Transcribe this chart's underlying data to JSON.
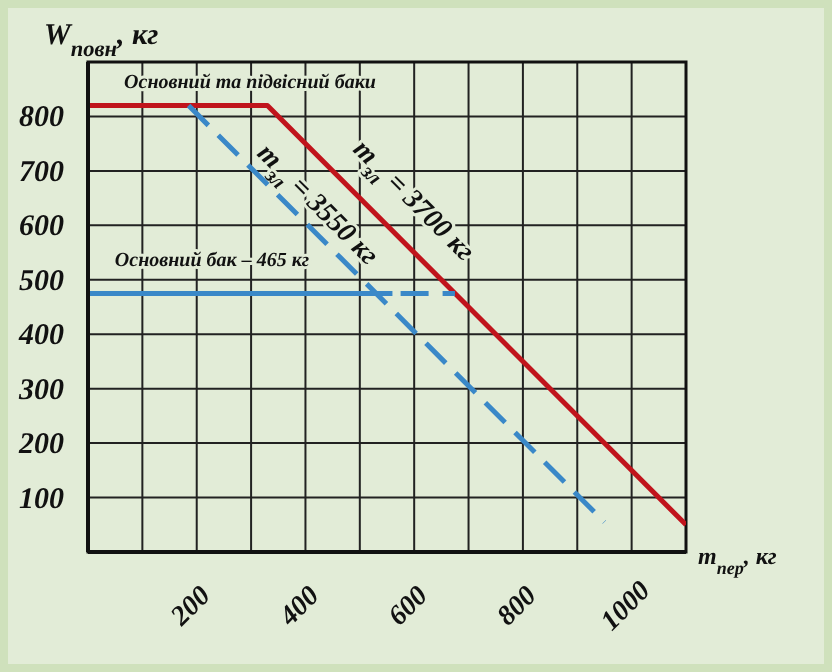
{
  "chart_data": {
    "type": "line",
    "xlabel": "m$_{пер}$, кг",
    "ylabel": "W$_{повн}$, кг",
    "xlim": [
      0,
      1100
    ],
    "ylim": [
      0,
      900
    ],
    "xticks": [
      {
        "value": 100,
        "label": null
      },
      200,
      {
        "value": 300,
        "label": null
      },
      400,
      {
        "value": 500,
        "label": null
      },
      600,
      {
        "value": 700,
        "label": null
      },
      800,
      {
        "value": 900,
        "label": null
      },
      1000
    ],
    "yticks": [
      100,
      200,
      300,
      400,
      500,
      600,
      700,
      800
    ],
    "grid": true,
    "marker": "none",
    "series": [
      {
        "color": "#c0141c",
        "x": [
          0,
          330,
          1100
        ],
        "values": [
          820,
          820,
          50
        ],
        "line_style": "solid"
      },
      {
        "color": "#3a88c8",
        "x": [
          185,
          950
        ],
        "values": [
          820,
          55
        ],
        "line_style": "dashed"
      },
      {
        "color": "#3a88c8",
        "x": [
          0,
          560
        ],
        "values": [
          475,
          475
        ],
        "line_style": "solid"
      },
      {
        "color": "#3a88c8",
        "x": [
          575,
          675
        ],
        "values": [
          475,
          475
        ],
        "line_style": "dashed"
      }
    ],
    "annotations": [
      "Основний та підвісний баки",
      "Основний бак – 465 кг",
      "m$_{зл}$ = 3550 кг",
      "m$_{зл}$ = 3700 кг"
    ]
  }
}
